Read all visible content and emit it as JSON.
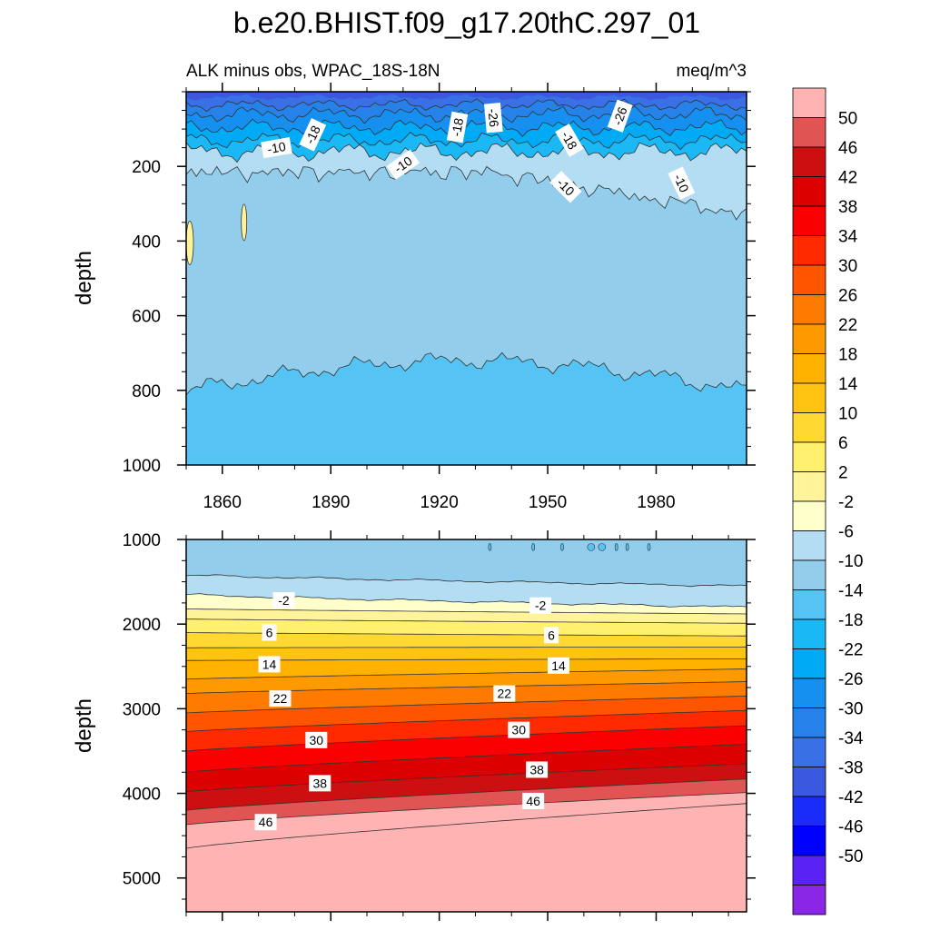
{
  "colors": {
    "background": "#ffffff",
    "axis": "#000000",
    "contour_line": "#333333"
  },
  "chart_data": {
    "title": "b.e20.BHIST.f09_g17.20thC.297_01",
    "subtitle_left": "ALK minus obs, WPAC_18S-18N",
    "subtitle_right": "meq/m^3",
    "type": "heatmap",
    "x_range": [
      1850,
      2005
    ],
    "x_ticks": [
      1860,
      1890,
      1920,
      1950,
      1980
    ],
    "colorbar": {
      "labels": [
        "50",
        "46",
        "42",
        "38",
        "34",
        "30",
        "26",
        "22",
        "18",
        "14",
        "10",
        "6",
        "2",
        "-2",
        "-6",
        "-10",
        "-14",
        "-18",
        "-22",
        "-26",
        "-30",
        "-34",
        "-38",
        "-42",
        "-46",
        "-50"
      ],
      "colors": [
        "#ffb3b3",
        "#e15454",
        "#cc1010",
        "#dd0000",
        "#fa0000",
        "#ff2a00",
        "#ff5500",
        "#ff7b00",
        "#ff9900",
        "#ffb300",
        "#ffc412",
        "#ffd931",
        "#fff06e",
        "#fff49a",
        "#ffffcc",
        "#b3ddf3",
        "#93cdec",
        "#55c4f5",
        "#1ab8f5",
        "#00aaf5",
        "#1690f0",
        "#2682e8",
        "#3a70e6",
        "#3a58e0",
        "#1a2cfa",
        "#0000ff",
        "#5a22f5",
        "#8a26e6"
      ]
    },
    "panels": [
      {
        "name": "upper",
        "ylabel": "depth",
        "y_range": [
          0,
          1000
        ],
        "y_ticks": [
          200,
          400,
          600,
          800,
          1000
        ],
        "contour_labels": [
          {
            "text": "-10",
            "year": 1875,
            "depth": 150,
            "rot": -10
          },
          {
            "text": "-18",
            "year": 1885,
            "depth": 115,
            "rot": -65
          },
          {
            "text": "-10",
            "year": 1910,
            "depth": 195,
            "rot": -35
          },
          {
            "text": "-18",
            "year": 1925,
            "depth": 95,
            "rot": -80
          },
          {
            "text": "-26",
            "year": 1935,
            "depth": 70,
            "rot": 85
          },
          {
            "text": "-18",
            "year": 1956,
            "depth": 130,
            "rot": 60
          },
          {
            "text": "-10",
            "year": 1955,
            "depth": 255,
            "rot": 45
          },
          {
            "text": "-26",
            "year": 1970,
            "depth": 65,
            "rot": -70
          },
          {
            "text": "-10",
            "year": 1987,
            "depth": 245,
            "rot": 65
          }
        ]
      },
      {
        "name": "lower",
        "ylabel": "depth",
        "y_range": [
          1000,
          5400
        ],
        "y_ticks": [
          1000,
          2000,
          3000,
          4000,
          5000
        ],
        "contour_labels": [
          {
            "text": "-2",
            "year": 1877,
            "depth": 1720,
            "rot": 0
          },
          {
            "text": "-2",
            "year": 1948,
            "depth": 1780,
            "rot": 0
          },
          {
            "text": "6",
            "year": 1873,
            "depth": 2100,
            "rot": 0
          },
          {
            "text": "6",
            "year": 1951,
            "depth": 2130,
            "rot": 0
          },
          {
            "text": "14",
            "year": 1873,
            "depth": 2475,
            "rot": 0
          },
          {
            "text": "14",
            "year": 1953,
            "depth": 2490,
            "rot": 0
          },
          {
            "text": "22",
            "year": 1876,
            "depth": 2880,
            "rot": 0
          },
          {
            "text": "22",
            "year": 1938,
            "depth": 2820,
            "rot": 0
          },
          {
            "text": "30",
            "year": 1886,
            "depth": 3370,
            "rot": 0
          },
          {
            "text": "30",
            "year": 1942,
            "depth": 3250,
            "rot": 0
          },
          {
            "text": "38",
            "year": 1887,
            "depth": 3880,
            "rot": 0
          },
          {
            "text": "38",
            "year": 1947,
            "depth": 3720,
            "rot": 0
          },
          {
            "text": "46",
            "year": 1872,
            "depth": 4340,
            "rot": 0
          },
          {
            "text": "46",
            "year": 1946,
            "depth": 4090,
            "rot": 0
          }
        ]
      }
    ]
  }
}
